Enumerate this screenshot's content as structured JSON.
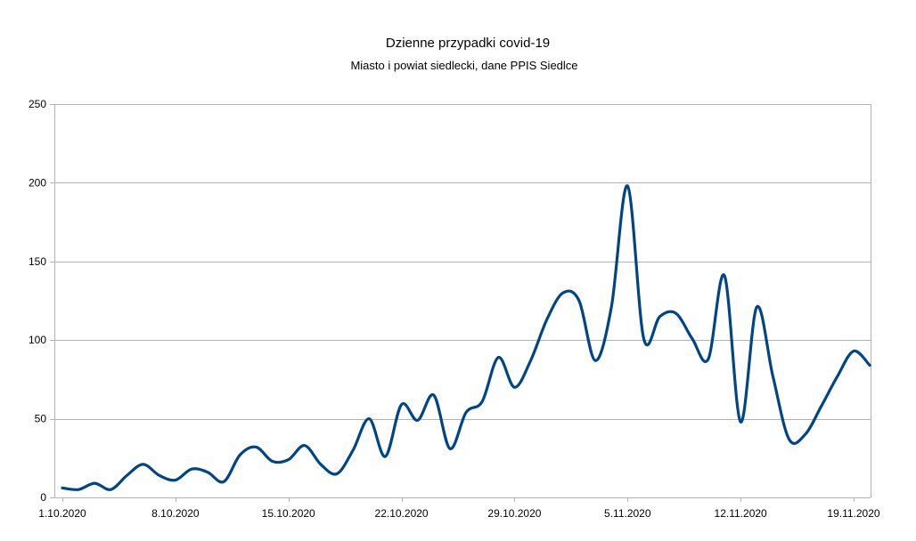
{
  "chart_data": {
    "type": "line",
    "title": "Dzienne przypadki covid-19",
    "subtitle": "Miasto i powiat siedlecki, dane PPIS Siedlce",
    "xlabel": "",
    "ylabel": "",
    "ylim": [
      0,
      250
    ],
    "yticks": [
      "0",
      "50",
      "100",
      "150",
      "200",
      "250"
    ],
    "xticks": [
      "1.10.2020",
      "8.10.2020",
      "15.10.2020",
      "22.10.2020",
      "29.10.2020",
      "5.11.2020",
      "12.11.2020",
      "19.11.2020"
    ],
    "grid": true,
    "legend": "none",
    "line_color": "#004586",
    "smooth": true,
    "x": [
      "1.10.2020",
      "2.10.2020",
      "3.10.2020",
      "4.10.2020",
      "5.10.2020",
      "6.10.2020",
      "7.10.2020",
      "8.10.2020",
      "9.10.2020",
      "10.10.2020",
      "11.10.2020",
      "12.10.2020",
      "13.10.2020",
      "14.10.2020",
      "15.10.2020",
      "16.10.2020",
      "17.10.2020",
      "18.10.2020",
      "19.10.2020",
      "20.10.2020",
      "21.10.2020",
      "22.10.2020",
      "23.10.2020",
      "24.10.2020",
      "25.10.2020",
      "26.10.2020",
      "27.10.2020",
      "28.10.2020",
      "29.10.2020",
      "30.10.2020",
      "31.10.2020",
      "1.11.2020",
      "2.11.2020",
      "3.11.2020",
      "4.11.2020",
      "5.11.2020",
      "6.11.2020",
      "7.11.2020",
      "8.11.2020",
      "9.11.2020",
      "10.11.2020",
      "11.11.2020",
      "12.11.2020",
      "13.11.2020",
      "14.11.2020",
      "15.11.2020",
      "16.11.2020",
      "17.11.2020",
      "18.11.2020",
      "19.11.2020",
      "20.11.2020"
    ],
    "series": [
      {
        "values": [
          6,
          5,
          9,
          5,
          14,
          21,
          14,
          11,
          18,
          16,
          10,
          27,
          32,
          23,
          24,
          33,
          21,
          15,
          30,
          50,
          26,
          59,
          49,
          65,
          31,
          54,
          61,
          89,
          70,
          87,
          113,
          130,
          125,
          87,
          121,
          198,
          101,
          115,
          117,
          101,
          88,
          141,
          48,
          121,
          77,
          37,
          40,
          58,
          77,
          93,
          84
        ]
      }
    ]
  }
}
